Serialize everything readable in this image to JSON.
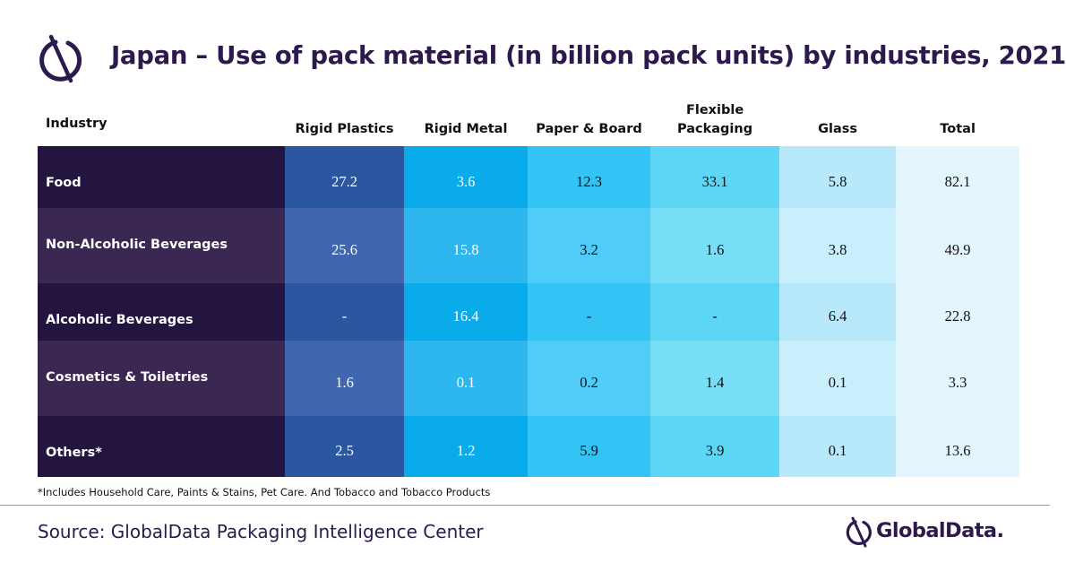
{
  "title": "Japan – Use of pack material (in billion pack units) by industries, 2021",
  "chart_data": {
    "type": "table",
    "title": "Japan – Use of pack material (in billion pack units) by industries, 2021",
    "row_header": "Industry",
    "columns": [
      "Rigid Plastics",
      "Rigid Metal",
      "Paper & Board",
      "Flexible Packaging",
      "Glass",
      "Total"
    ],
    "rows": [
      {
        "label": "Food",
        "values": [
          "27.2",
          "3.6",
          "12.3",
          "33.1",
          "5.8",
          "82.1"
        ]
      },
      {
        "label": "Non-Alcoholic Beverages",
        "values": [
          "25.6",
          "15.8",
          "3.2",
          "1.6",
          "3.8",
          "49.9"
        ]
      },
      {
        "label": "Alcoholic Beverages",
        "values": [
          "-",
          "16.4",
          "-",
          "-",
          "6.4",
          "22.8"
        ]
      },
      {
        "label": "Cosmetics & Toiletries",
        "values": [
          "1.6",
          "0.1",
          "0.2",
          "1.4",
          "0.1",
          "3.3"
        ]
      },
      {
        "label": "Others*",
        "values": [
          "2.5",
          "1.2",
          "5.9",
          "3.9",
          "0.1",
          "13.6"
        ]
      }
    ]
  },
  "footnote": "*Includes Household Care, Paints & Stains, Pet Care. And Tobacco and Tobacco Products",
  "source": "Source: GlobalData Packaging Intelligence Center",
  "brand": "GlobalData.",
  "colors": {
    "title": "#2c1a4d",
    "row_label_dark": "#231440",
    "row_label_light": "#3a2752",
    "rigid_plastics_dark": "#2b57a0",
    "rigid_plastics_light": "#4066ad",
    "rigid_metal_dark": "#0aabeb",
    "rigid_metal_light": "#2db7ee",
    "paper_board_dark": "#33c3f5",
    "paper_board_light": "#4fccf7",
    "flexible_dark": "#5cd6f4",
    "flexible_light": "#78def6",
    "glass_dark": "#b8e9fb",
    "glass_light": "#c9eefc",
    "total": "#e3f6fd"
  },
  "icons": {
    "logo": "globaldata-logo-icon",
    "brand": "globaldata-brand-icon"
  }
}
